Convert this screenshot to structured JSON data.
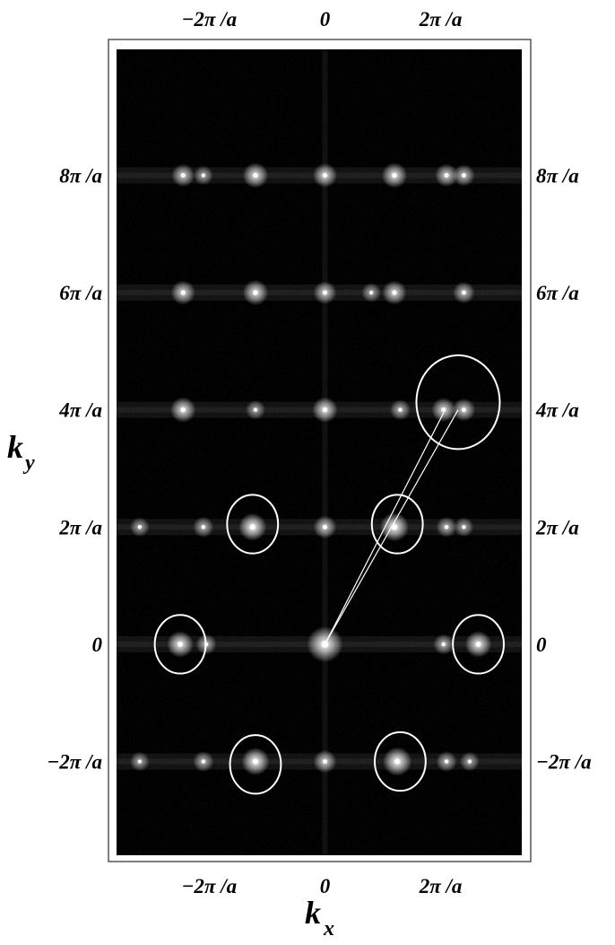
{
  "chart_data": {
    "type": "heatmap",
    "title": "",
    "xlabel": "k",
    "xlabel_sub": "x",
    "ylabel": "k",
    "ylabel_sub": "y",
    "xlim": [
      -3.6,
      3.4
    ],
    "ylim": [
      -3.6,
      10.15
    ],
    "x_ticks": [
      {
        "value": -2,
        "label": "−2π /a"
      },
      {
        "value": 0,
        "label": "0"
      },
      {
        "value": 2,
        "label": "2π /a"
      }
    ],
    "y_ticks": [
      {
        "value": -2,
        "label": "−2π /a"
      },
      {
        "value": 0,
        "label": "0"
      },
      {
        "value": 2,
        "label": "2π /a"
      },
      {
        "value": 4,
        "label": "4π /a"
      },
      {
        "value": 6,
        "label": "6π /a"
      },
      {
        "value": 8,
        "label": "8π /a"
      }
    ],
    "peak_rows_y": [
      -2,
      0,
      2,
      4,
      6,
      8
    ],
    "peaks": [
      {
        "x": 0,
        "y": 0,
        "intensity": 1.0
      },
      {
        "x": -2.5,
        "y": 0,
        "intensity": 0.6
      },
      {
        "x": 2.65,
        "y": 0,
        "intensity": 0.6
      },
      {
        "x": -2.05,
        "y": 0,
        "intensity": 0.35
      },
      {
        "x": 2.05,
        "y": 0,
        "intensity": 0.35
      },
      {
        "x": -1.25,
        "y": 2,
        "intensity": 0.65
      },
      {
        "x": 1.2,
        "y": 2,
        "intensity": 0.7
      },
      {
        "x": 0,
        "y": 2,
        "intensity": 0.45
      },
      {
        "x": -2.1,
        "y": 2,
        "intensity": 0.35
      },
      {
        "x": 2.1,
        "y": 2,
        "intensity": 0.35
      },
      {
        "x": -3.2,
        "y": 2,
        "intensity": 0.3
      },
      {
        "x": 2.4,
        "y": 2,
        "intensity": 0.3
      },
      {
        "x": -1.2,
        "y": -2,
        "intensity": 0.65
      },
      {
        "x": 1.25,
        "y": -2,
        "intensity": 0.7
      },
      {
        "x": 0,
        "y": -2,
        "intensity": 0.45
      },
      {
        "x": -2.1,
        "y": -2,
        "intensity": 0.35
      },
      {
        "x": 2.1,
        "y": -2,
        "intensity": 0.35
      },
      {
        "x": -3.2,
        "y": -2,
        "intensity": 0.3
      },
      {
        "x": 2.5,
        "y": -2,
        "intensity": 0.3
      },
      {
        "x": -2.45,
        "y": 4,
        "intensity": 0.55
      },
      {
        "x": 0,
        "y": 4,
        "intensity": 0.55
      },
      {
        "x": 2.05,
        "y": 4,
        "intensity": 0.5
      },
      {
        "x": 2.4,
        "y": 4,
        "intensity": 0.45
      },
      {
        "x": 1.3,
        "y": 4,
        "intensity": 0.35
      },
      {
        "x": -1.2,
        "y": 4,
        "intensity": 0.3
      },
      {
        "x": -2.45,
        "y": 6,
        "intensity": 0.5
      },
      {
        "x": -1.2,
        "y": 6,
        "intensity": 0.55
      },
      {
        "x": 0,
        "y": 6,
        "intensity": 0.45
      },
      {
        "x": 1.2,
        "y": 6,
        "intensity": 0.5
      },
      {
        "x": 2.4,
        "y": 6,
        "intensity": 0.4
      },
      {
        "x": 0.8,
        "y": 6,
        "intensity": 0.3
      },
      {
        "x": -2.45,
        "y": 8,
        "intensity": 0.45
      },
      {
        "x": -1.2,
        "y": 8,
        "intensity": 0.55
      },
      {
        "x": 0,
        "y": 8,
        "intensity": 0.5
      },
      {
        "x": 1.2,
        "y": 8,
        "intensity": 0.55
      },
      {
        "x": 2.1,
        "y": 8,
        "intensity": 0.45
      },
      {
        "x": 2.4,
        "y": 8,
        "intensity": 0.4
      },
      {
        "x": -2.1,
        "y": 8,
        "intensity": 0.3
      }
    ],
    "circles": [
      {
        "cx": -1.25,
        "cy": 2.05,
        "rx": 0.44,
        "ry": 0.5
      },
      {
        "cx": 1.25,
        "cy": 2.05,
        "rx": 0.44,
        "ry": 0.5
      },
      {
        "cx": -2.5,
        "cy": 0.0,
        "rx": 0.44,
        "ry": 0.5
      },
      {
        "cx": 2.65,
        "cy": 0.0,
        "rx": 0.44,
        "ry": 0.5
      },
      {
        "cx": -1.2,
        "cy": -2.05,
        "rx": 0.44,
        "ry": 0.5
      },
      {
        "cx": 1.3,
        "cy": -2.0,
        "rx": 0.44,
        "ry": 0.5
      },
      {
        "cx": 2.3,
        "cy": 4.13,
        "rx": 0.72,
        "ry": 0.8
      }
    ],
    "vectors": [
      {
        "from": [
          0,
          0
        ],
        "to": [
          2.05,
          3.95
        ]
      },
      {
        "from": [
          0,
          0
        ],
        "to": [
          2.3,
          4.0
        ]
      }
    ],
    "colors": {
      "background": "#000000",
      "frame": "#ffffff",
      "annotation": "#ffffff",
      "text": "#000000"
    }
  }
}
